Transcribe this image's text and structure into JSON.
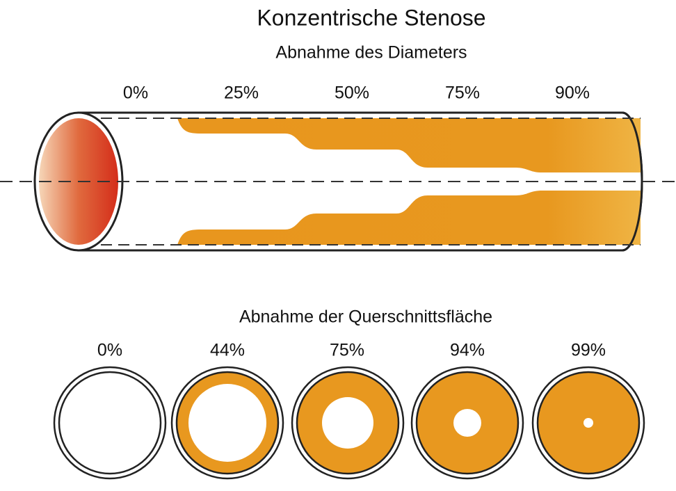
{
  "title": "Konzentrische Stenose",
  "diameter": {
    "heading": "Abnahme des Diameters",
    "labels": [
      "0%",
      "25%",
      "50%",
      "75%",
      "90%"
    ]
  },
  "area": {
    "heading": "Abnahme der Querschnittsfläche",
    "labels": [
      "0%",
      "44%",
      "75%",
      "94%",
      "99%"
    ]
  }
}
